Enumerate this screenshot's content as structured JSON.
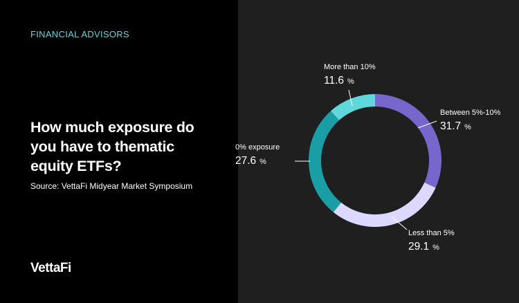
{
  "category": "FINANCIAL ADVISORS",
  "headline": "How much exposure do\nyou have to thematic\nequity ETFs?",
  "source": "Source: VettaFi Midyear Market Symposium",
  "logo": "VettaFi",
  "colors": {
    "left_bg": "#000000",
    "right_bg": "#1f1f1f",
    "accent": "#5fd8dc"
  },
  "chart_data": {
    "type": "pie",
    "variant": "donut",
    "categories": [
      "Between 5%-10%",
      "Less than 5%",
      "0% exposure",
      "More than 10%"
    ],
    "values": [
      31.7,
      29.1,
      27.6,
      11.6
    ],
    "unit": "%",
    "colors": [
      "#7766cc",
      "#dcd8ff",
      "#1a9ea6",
      "#5fd8dc"
    ],
    "start_angle_deg": 0,
    "direction": "clockwise"
  }
}
